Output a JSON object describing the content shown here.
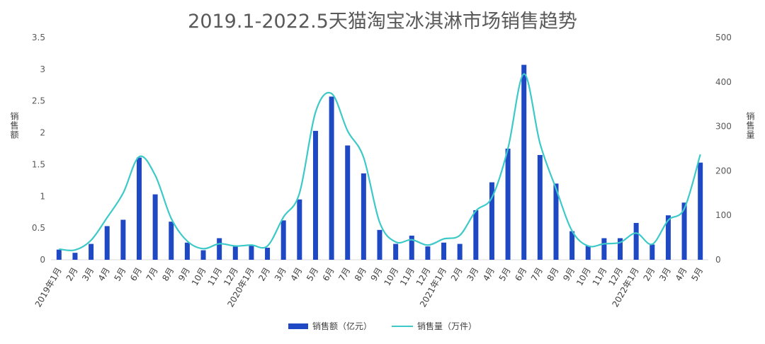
{
  "chart_data": {
    "type": "bar",
    "title": "2019.1-2022.5天猫淘宝冰淇淋市场销售趋势",
    "ylabel_left": "销售额",
    "ylabel_right": "销售量",
    "ylim_left": [
      0,
      3.5
    ],
    "yticks_left": [
      "0",
      "0.5",
      "1",
      "1.5",
      "2",
      "2.5",
      "3",
      "3.5"
    ],
    "ylim_right": [
      0,
      500
    ],
    "yticks_right": [
      "0",
      "100",
      "200",
      "300",
      "400",
      "500"
    ],
    "categories": [
      "2019年1月",
      "2月",
      "3月",
      "4月",
      "5月",
      "6月",
      "7月",
      "8月",
      "9月",
      "10月",
      "11月",
      "12月",
      "2020年1月",
      "2月",
      "3月",
      "4月",
      "5月",
      "6月",
      "7月",
      "8月",
      "9月",
      "10月",
      "11月",
      "12月",
      "2021年1月",
      "2月",
      "3月",
      "4月",
      "5月",
      "6月",
      "7月",
      "8月",
      "9月",
      "10月",
      "11月",
      "12月",
      "2022年1月",
      "2月",
      "3月",
      "4月",
      "5月"
    ],
    "series": [
      {
        "name": "销售额（亿元）",
        "type": "bar",
        "axis": "left",
        "color": "#1f48c4",
        "values": [
          0.16,
          0.11,
          0.25,
          0.53,
          0.63,
          1.61,
          1.03,
          0.6,
          0.27,
          0.15,
          0.34,
          0.21,
          0.23,
          0.19,
          0.62,
          0.95,
          2.03,
          2.57,
          1.8,
          1.36,
          0.47,
          0.25,
          0.38,
          0.21,
          0.27,
          0.25,
          0.78,
          1.22,
          1.75,
          3.07,
          1.65,
          1.2,
          0.45,
          0.22,
          0.34,
          0.34,
          0.58,
          0.24,
          0.7,
          0.9,
          1.53
        ]
      },
      {
        "name": "销售量（万件）",
        "type": "line",
        "axis": "right",
        "color": "#3ec9c9",
        "values": [
          24,
          22,
          44,
          95,
          150,
          232,
          190,
          93,
          42,
          25,
          36,
          31,
          33,
          31,
          96,
          150,
          332,
          374,
          290,
          230,
          84,
          40,
          45,
          33,
          47,
          55,
          110,
          140,
          250,
          418,
          262,
          160,
          65,
          31,
          36,
          39,
          60,
          35,
          89,
          115,
          237
        ]
      }
    ],
    "legend_position": "bottom",
    "grid": false
  }
}
